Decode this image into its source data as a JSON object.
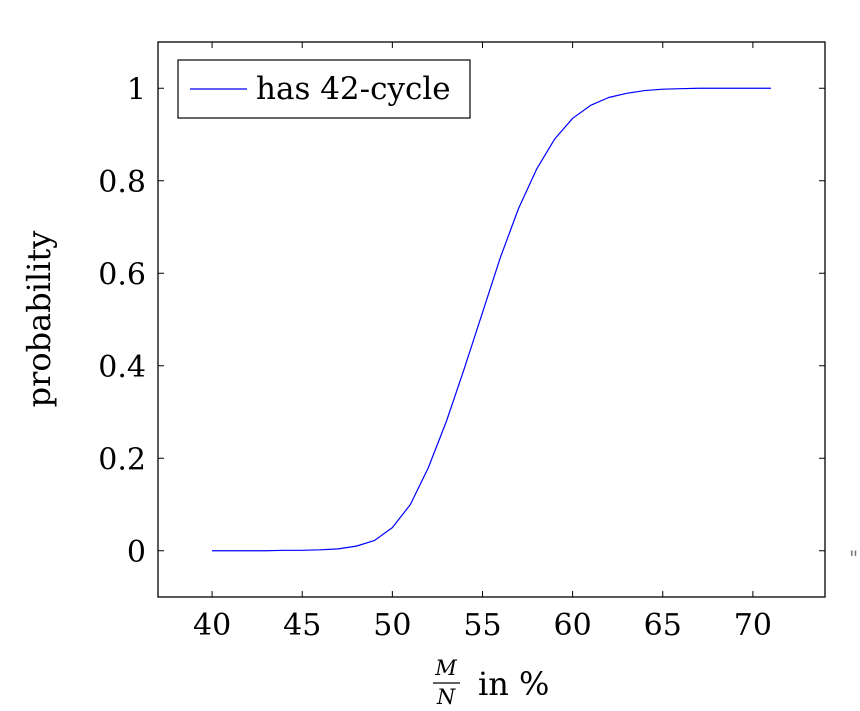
{
  "chart_data": {
    "type": "line",
    "title": "",
    "xlabel": {
      "numerator": "M",
      "denominator": "N",
      "suffix": "in %"
    },
    "ylabel": "probability",
    "xlim": [
      37,
      74
    ],
    "ylim": [
      -0.1,
      1.1
    ],
    "xticks": [
      "40",
      "45",
      "50",
      "55",
      "60",
      "65",
      "70"
    ],
    "yticks": [
      "0",
      "0.2",
      "0.4",
      "0.6",
      "0.8",
      "1"
    ],
    "grid": false,
    "legend_position": "top-left",
    "series": [
      {
        "name": "has 42-cycle",
        "color": "#0000ff",
        "x": [
          40,
          41,
          42,
          43,
          44,
          45,
          46,
          47,
          48,
          49,
          50,
          51,
          52,
          53,
          54,
          55,
          56,
          57,
          58,
          59,
          60,
          61,
          62,
          63,
          64,
          65,
          66,
          67,
          68,
          69,
          70,
          71
        ],
        "y": [
          0,
          0,
          0,
          0,
          0.001,
          0.001,
          0.002,
          0.004,
          0.01,
          0.022,
          0.05,
          0.1,
          0.18,
          0.28,
          0.395,
          0.515,
          0.635,
          0.74,
          0.825,
          0.89,
          0.935,
          0.963,
          0.98,
          0.989,
          0.995,
          0.998,
          0.999,
          1,
          1,
          1,
          1,
          1
        ]
      }
    ]
  },
  "stray_mark": "\""
}
